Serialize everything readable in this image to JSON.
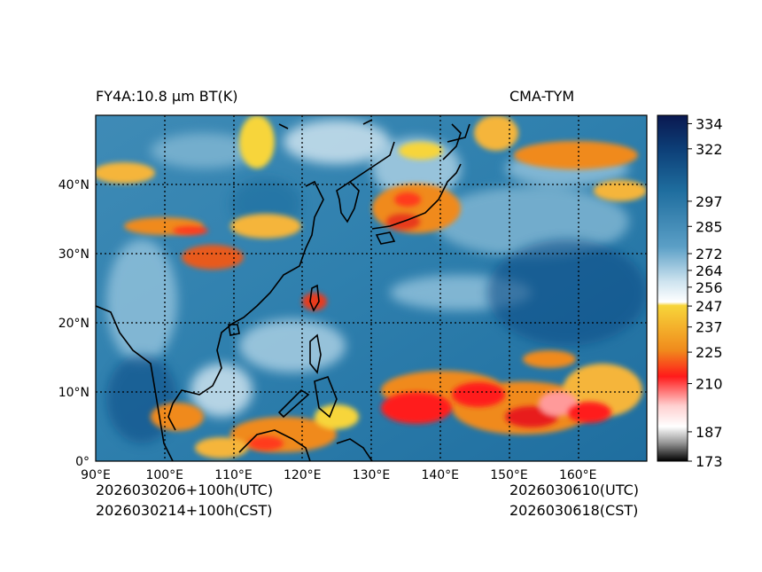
{
  "header": {
    "left_title": "FY4A:10.8 µm BT(K)",
    "right_title": "CMA-TYM"
  },
  "footer": {
    "init_utc": "2026030206+100h(UTC)",
    "init_cst": "2026030214+100h(CST)",
    "valid_utc": "2026030610(UTC)",
    "valid_cst": "2026030618(CST)"
  },
  "map": {
    "lon_labels": [
      "90°E",
      "100°E",
      "110°E",
      "120°E",
      "130°E",
      "140°E",
      "150°E",
      "160°E"
    ],
    "lat_labels": [
      "40°N",
      "30°N",
      "20°N",
      "10°N",
      "0°"
    ],
    "lon_range": [
      90,
      170
    ],
    "lat_range": [
      0,
      50
    ],
    "lon_values": [
      90,
      100,
      110,
      120,
      130,
      140,
      150,
      160
    ],
    "lat_values": [
      40,
      30,
      20,
      10,
      0
    ]
  },
  "colorbar": {
    "tick_labels": [
      "334",
      "322",
      "297",
      "285",
      "272",
      "264",
      "256",
      "247",
      "237",
      "225",
      "210",
      "187",
      "173"
    ],
    "tick_values": [
      334,
      322,
      297,
      285,
      272,
      264,
      256,
      247,
      237,
      225,
      210,
      187,
      173
    ],
    "range": [
      173,
      338
    ],
    "colors": {
      "navy": "#0a1850",
      "deep_blue": "#0d4d87",
      "steel_blue": "#2d7fad",
      "light_blue": "#7fb5d2",
      "white": "#ffffff",
      "yellow": "#f7d53a",
      "orange": "#f08a1c",
      "red": "#ff1a1a",
      "pink": "#ff9a9a",
      "grey": "#9c9c9c",
      "black": "#000000"
    }
  }
}
